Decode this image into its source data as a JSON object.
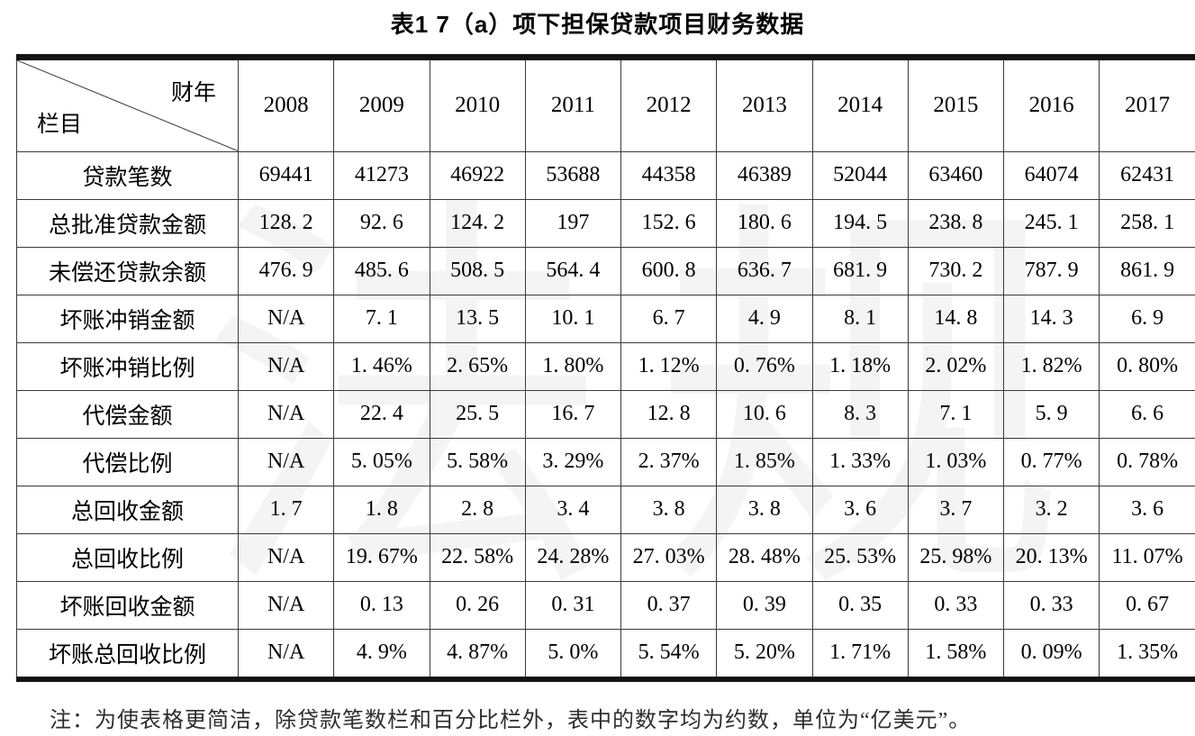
{
  "title": "表1 7（a）项下担保贷款项目财务数据",
  "watermark": "法规",
  "table": {
    "corner": {
      "top_right": "财年",
      "bottom_left": "栏目"
    },
    "years": [
      "2008",
      "2009",
      "2010",
      "2011",
      "2012",
      "2013",
      "2014",
      "2015",
      "2016",
      "2017"
    ],
    "rows": [
      {
        "label": "贷款笔数",
        "values": [
          "69441",
          "41273",
          "46922",
          "53688",
          "44358",
          "46389",
          "52044",
          "63460",
          "64074",
          "62431"
        ]
      },
      {
        "label": "总批准贷款金额",
        "values": [
          "128. 2",
          "92. 6",
          "124. 2",
          "197",
          "152. 6",
          "180. 6",
          "194. 5",
          "238. 8",
          "245. 1",
          "258. 1"
        ]
      },
      {
        "label": "未偿还贷款余额",
        "values": [
          "476. 9",
          "485. 6",
          "508. 5",
          "564. 4",
          "600. 8",
          "636. 7",
          "681. 9",
          "730. 2",
          "787. 9",
          "861. 9"
        ]
      },
      {
        "label": "坏账冲销金额",
        "values": [
          "N/A",
          "7. 1",
          "13. 5",
          "10. 1",
          "6. 7",
          "4. 9",
          "8. 1",
          "14. 8",
          "14. 3",
          "6. 9"
        ]
      },
      {
        "label": "坏账冲销比例",
        "values": [
          "N/A",
          "1. 46%",
          "2. 65%",
          "1. 80%",
          "1. 12%",
          "0. 76%",
          "1. 18%",
          "2. 02%",
          "1. 82%",
          "0. 80%"
        ]
      },
      {
        "label": "代偿金额",
        "values": [
          "N/A",
          "22. 4",
          "25. 5",
          "16. 7",
          "12. 8",
          "10. 6",
          "8. 3",
          "7. 1",
          "5. 9",
          "6. 6"
        ]
      },
      {
        "label": "代偿比例",
        "values": [
          "N/A",
          "5. 05%",
          "5. 58%",
          "3. 29%",
          "2. 37%",
          "1. 85%",
          "1. 33%",
          "1. 03%",
          "0. 77%",
          "0. 78%"
        ]
      },
      {
        "label": "总回收金额",
        "values": [
          "1. 7",
          "1. 8",
          "2. 8",
          "3. 4",
          "3. 8",
          "3. 8",
          "3. 6",
          "3. 7",
          "3. 2",
          "3. 6"
        ]
      },
      {
        "label": "总回收比例",
        "values": [
          "N/A",
          "19. 67%",
          "22. 58%",
          "24. 28%",
          "27. 03%",
          "28. 48%",
          "25. 53%",
          "25. 98%",
          "20. 13%",
          "11. 07%"
        ]
      },
      {
        "label": "坏账回收金额",
        "values": [
          "N/A",
          "0. 13",
          "0. 26",
          "0. 31",
          "0. 37",
          "0. 39",
          "0. 35",
          "0. 33",
          "0. 33",
          "0. 67"
        ]
      },
      {
        "label": "坏账总回收比例",
        "values": [
          "N/A",
          "4. 9%",
          "4. 87%",
          "5. 0%",
          "5. 54%",
          "5. 20%",
          "1. 71%",
          "1. 58%",
          "0. 09%",
          "1. 35%"
        ]
      }
    ]
  },
  "note": "注：为使表格更简洁，除贷款笔数栏和百分比栏外，表中的数字均为约数，单位为“亿美元”。",
  "colors": {
    "text": "#000000",
    "thick_rule": "#131313",
    "grid_line": "#3a3a3a",
    "background": "#ffffff"
  }
}
